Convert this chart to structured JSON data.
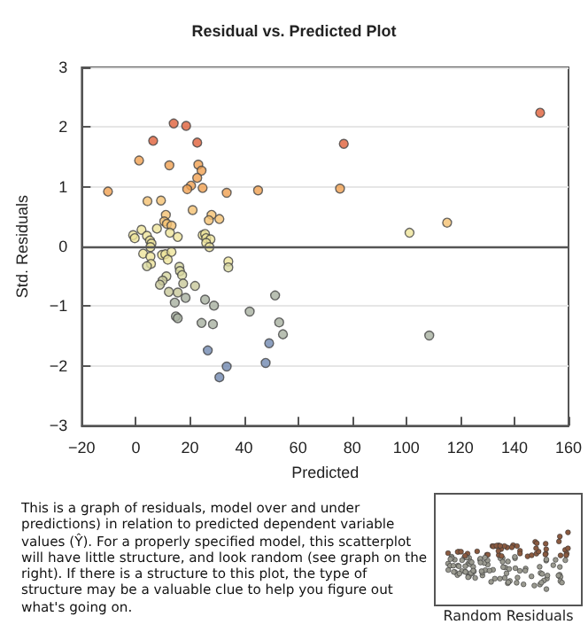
{
  "chart_data": [
    {
      "type": "scatter",
      "title": "Residual vs. Predicted Plot",
      "xlabel": "Predicted",
      "ylabel": "Std. Residuals",
      "x": [
        -10.3,
        1.2,
        6.4,
        4.3,
        9.3,
        11.1,
        14.0,
        12.4,
        18.6,
        22.7,
        23.1,
        24.3,
        22.7,
        20.4,
        19.0,
        24.7,
        21.0,
        28.0,
        33.6,
        45.2,
        75.5,
        76.9,
        149.5,
        30.9,
        27.0,
        10.5,
        11.5,
        13.2,
        7.8,
        2.1,
        12.6,
        15.5,
        -1.0,
        -0.4,
        4.1,
        5.2,
        5.8,
        5.4,
        24.7,
        25.6,
        26.0,
        27.6,
        26.0,
        27.2,
        2.7,
        9.7,
        10.9,
        13.2,
        11.8,
        5.4,
        5.6,
        4.1,
        34.2,
        34.2,
        16.1,
        16.3,
        17.1,
        17.5,
        11.3,
        9.9,
        8.9,
        12.2,
        15.5,
        18.4,
        21.9,
        25.6,
        28.9,
        14.4,
        14.8,
        15.5,
        24.3,
        28.5,
        26.6,
        33.6,
        30.9,
        42.1,
        51.5,
        53.0,
        54.4,
        49.3,
        48.0,
        101.2,
        115.1,
        108.5
      ],
      "values": [
        0.92,
        1.44,
        1.77,
        0.76,
        0.77,
        0.53,
        2.06,
        1.36,
        2.02,
        1.74,
        1.37,
        1.27,
        1.15,
        1.02,
        0.96,
        0.98,
        0.61,
        0.53,
        0.9,
        0.94,
        0.97,
        1.72,
        2.24,
        0.46,
        0.44,
        0.42,
        0.38,
        0.35,
        0.3,
        0.28,
        0.23,
        0.16,
        0.19,
        0.14,
        0.18,
        0.1,
        0.05,
        -0.01,
        0.19,
        0.21,
        0.14,
        0.12,
        0.06,
        -0.01,
        -0.12,
        -0.14,
        -0.13,
        -0.09,
        -0.22,
        -0.17,
        -0.29,
        -0.33,
        -0.25,
        -0.35,
        -0.34,
        -0.41,
        -0.48,
        -0.62,
        -0.5,
        -0.57,
        -0.64,
        -0.76,
        -0.77,
        -0.86,
        -0.66,
        -0.89,
        -0.99,
        -0.94,
        -1.17,
        -1.2,
        -1.28,
        -1.3,
        -1.74,
        -2.01,
        -2.19,
        -1.09,
        -0.82,
        -1.27,
        -1.47,
        -1.62,
        -1.95,
        0.23,
        0.4,
        -1.49
      ],
      "colors": [
        "#f0a050",
        "#f0a050",
        "#e0603a",
        "#f4c070",
        "#f4c070",
        "#f4c070",
        "#e0603a",
        "#f0a050",
        "#e0603a",
        "#e0603a",
        "#f0a050",
        "#f0a050",
        "#f0a050",
        "#f0a050",
        "#f0a050",
        "#f0a050",
        "#f4c070",
        "#f4c070",
        "#f0a050",
        "#f0a050",
        "#f0a050",
        "#e0603a",
        "#e0603a",
        "#f4c070",
        "#f4c070",
        "#f4c070",
        "#f4c070",
        "#f4c070",
        "#eee49a",
        "#eee49a",
        "#eee49a",
        "#eee49a",
        "#eee49a",
        "#eee49a",
        "#eee49a",
        "#eee49a",
        "#eee49a",
        "#eee49a",
        "#eee49a",
        "#eee49a",
        "#eee49a",
        "#eee49a",
        "#eee49a",
        "#eee49a",
        "#eee49a",
        "#eee49a",
        "#eee49a",
        "#eee49a",
        "#eee49a",
        "#eee49a",
        "#eee49a",
        "#d8d8a0",
        "#eee49a",
        "#d8d8a0",
        "#d8d8a0",
        "#d8d8a0",
        "#d8d8a0",
        "#c8c89a",
        "#d8d8a0",
        "#c8c89a",
        "#c8c89a",
        "#c8c89a",
        "#c8c89a",
        "#a8b0a0",
        "#c8c89a",
        "#a8b0a0",
        "#a8b0a0",
        "#a8b0a0",
        "#a8b0a0",
        "#a8b0a0",
        "#a8b0a0",
        "#a8b0a0",
        "#7088b0",
        "#7088b0",
        "#7088b0",
        "#a8b0a0",
        "#a8b0a0",
        "#a8b0a0",
        "#a8b0a0",
        "#7088b0",
        "#7088b0",
        "#eee49a",
        "#f4c070",
        "#a8b0a0"
      ],
      "xlim": [
        -20,
        160
      ],
      "xticks": [
        -20,
        0,
        20,
        40,
        60,
        80,
        100,
        120,
        140,
        160
      ],
      "ylim": [
        -3,
        3
      ],
      "yticks": [
        -3,
        -2,
        -1,
        0,
        1,
        2,
        3
      ],
      "grid": "y",
      "marker": "circle",
      "ref_lines": [
        {
          "axis": "y",
          "value": 0,
          "color": "#555555"
        }
      ],
      "annotations": [
        "This is a graph of residuals, model over and under predictions) in relation to predicted dependent variable values (Ŷ).  For a properly specified model, this scatterplot will have little structure, and look random (see graph on the right).  If there is a structure to this plot, the type of structure may be a valuable clue to help you figure out what's going on."
      ]
    },
    {
      "type": "other",
      "title": "Random Residuals"
    }
  ]
}
